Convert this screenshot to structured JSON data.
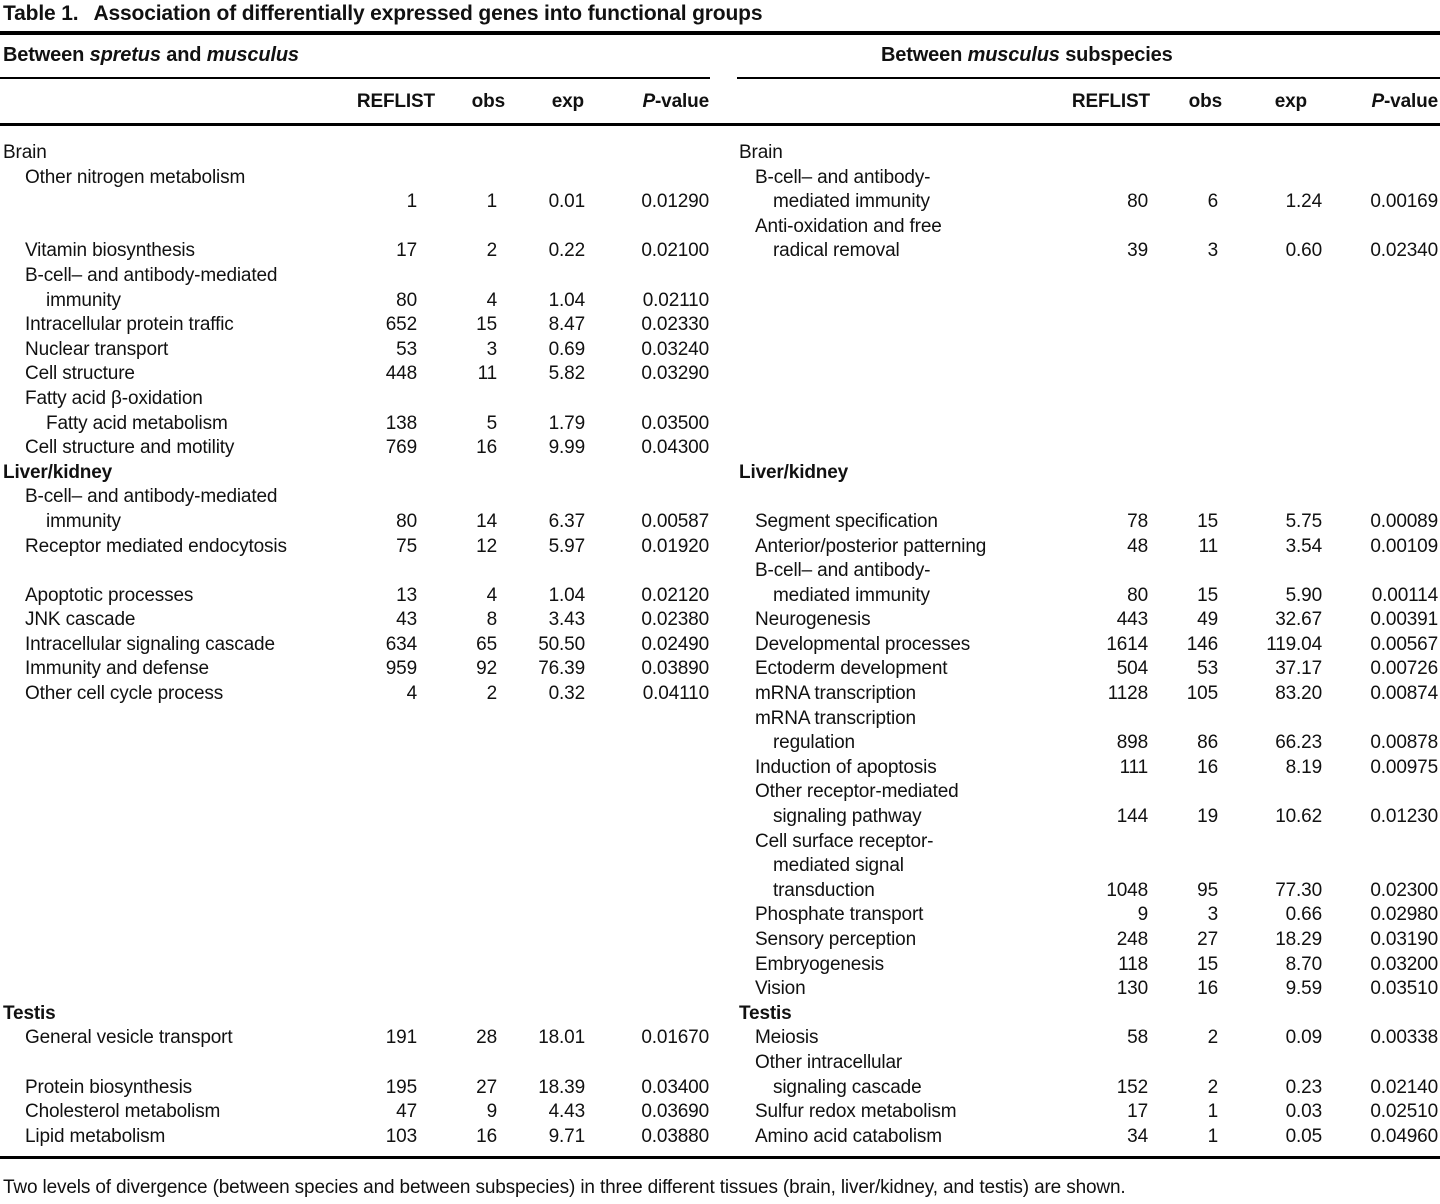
{
  "title": {
    "label": "Table 1.",
    "text": "Association of differentially expressed genes into functional groups"
  },
  "group_headers": {
    "left_segments": [
      {
        "t": "Between ",
        "i": false
      },
      {
        "t": "spretus",
        "i": true
      },
      {
        "t": " and ",
        "i": false
      },
      {
        "t": "musculus",
        "i": true
      }
    ],
    "right_segments": [
      {
        "t": "Between ",
        "i": false
      },
      {
        "t": "musculus",
        "i": true
      },
      {
        "t": " subspecies",
        "i": false
      }
    ]
  },
  "columns": {
    "reflist": "REFLIST",
    "obs": "obs",
    "exp": "exp",
    "p_segments": [
      {
        "t": "P",
        "i": true
      },
      {
        "t": "-value",
        "i": false
      }
    ]
  },
  "rows": [
    {
      "l": {
        "n": "Brain",
        "i": 0
      },
      "r": {
        "n": "Brain",
        "i": 0
      }
    },
    {
      "l": {
        "n": "Other nitrogen metabolism",
        "i": 1
      },
      "r": {
        "n": "B-cell– and antibody-",
        "i": 1
      }
    },
    {
      "l": {
        "n": "",
        "i": 0,
        "v": [
          "1",
          "1",
          "0.01",
          "0.01290"
        ]
      },
      "r": {
        "n": "mediated immunity",
        "i": 2,
        "v": [
          "80",
          "6",
          "1.24",
          "0.00169"
        ]
      }
    },
    {
      "l": null,
      "r": {
        "n": "Anti-oxidation and free",
        "i": 1
      }
    },
    {
      "l": {
        "n": "Vitamin biosynthesis",
        "i": 1,
        "v": [
          "17",
          "2",
          "0.22",
          "0.02100"
        ]
      },
      "r": {
        "n": "radical removal",
        "i": 2,
        "v": [
          "39",
          "3",
          "0.60",
          "0.02340"
        ]
      }
    },
    {
      "l": {
        "n": "B-cell– and antibody-mediated",
        "i": 1
      },
      "r": null
    },
    {
      "l": {
        "n": "immunity",
        "i": 2,
        "v": [
          "80",
          "4",
          "1.04",
          "0.02110"
        ]
      },
      "r": null
    },
    {
      "l": {
        "n": "Intracellular protein traffic",
        "i": 1,
        "v": [
          "652",
          "15",
          "8.47",
          "0.02330"
        ]
      },
      "r": null
    },
    {
      "l": {
        "n": "Nuclear transport",
        "i": 1,
        "v": [
          "53",
          "3",
          "0.69",
          "0.03240"
        ]
      },
      "r": null
    },
    {
      "l": {
        "n": "Cell structure",
        "i": 1,
        "v": [
          "448",
          "11",
          "5.82",
          "0.03290"
        ]
      },
      "r": null
    },
    {
      "l": {
        "n": "Fatty acid β-oxidation",
        "i": 1
      },
      "r": null
    },
    {
      "l": {
        "n": "Fatty acid metabolism",
        "i": 2,
        "v": [
          "138",
          "5",
          "1.79",
          "0.03500"
        ]
      },
      "r": null
    },
    {
      "l": {
        "n": "Cell structure and motility",
        "i": 1,
        "v": [
          "769",
          "16",
          "9.99",
          "0.04300"
        ]
      },
      "r": null
    },
    {
      "l": {
        "n": "Liver/kidney",
        "i": 0,
        "b": true
      },
      "r": {
        "n": "Liver/kidney",
        "i": 0,
        "b": true
      }
    },
    {
      "l": {
        "n": "B-cell– and antibody-mediated",
        "i": 1
      },
      "r": null
    },
    {
      "l": {
        "n": "immunity",
        "i": 2,
        "v": [
          "80",
          "14",
          "6.37",
          "0.00587"
        ]
      },
      "r": {
        "n": "Segment specification",
        "i": 1,
        "v": [
          "78",
          "15",
          "5.75",
          "0.00089"
        ]
      }
    },
    {
      "l": {
        "n": "Receptor mediated endocytosis",
        "i": 1,
        "v": [
          "75",
          "12",
          "5.97",
          "0.01920"
        ]
      },
      "r": {
        "n": "Anterior/posterior patterning",
        "i": 1,
        "v": [
          "48",
          "11",
          "3.54",
          "0.00109"
        ]
      }
    },
    {
      "l": null,
      "r": {
        "n": "B-cell– and antibody-",
        "i": 1
      }
    },
    {
      "l": {
        "n": "Apoptotic processes",
        "i": 1,
        "v": [
          "13",
          "4",
          "1.04",
          "0.02120"
        ]
      },
      "r": {
        "n": "mediated immunity",
        "i": 2,
        "v": [
          "80",
          "15",
          "5.90",
          "0.00114"
        ]
      }
    },
    {
      "l": {
        "n": "JNK cascade",
        "i": 1,
        "v": [
          "43",
          "8",
          "3.43",
          "0.02380"
        ]
      },
      "r": {
        "n": "Neurogenesis",
        "i": 1,
        "v": [
          "443",
          "49",
          "32.67",
          "0.00391"
        ]
      }
    },
    {
      "l": {
        "n": "Intracellular signaling cascade",
        "i": 1,
        "v": [
          "634",
          "65",
          "50.50",
          "0.02490"
        ]
      },
      "r": {
        "n": "Developmental processes",
        "i": 1,
        "v": [
          "1614",
          "146",
          "119.04",
          "0.00567"
        ]
      }
    },
    {
      "l": {
        "n": "Immunity and defense",
        "i": 1,
        "v": [
          "959",
          "92",
          "76.39",
          "0.03890"
        ]
      },
      "r": {
        "n": "Ectoderm development",
        "i": 1,
        "v": [
          "504",
          "53",
          "37.17",
          "0.00726"
        ]
      }
    },
    {
      "l": {
        "n": "Other cell cycle process",
        "i": 1,
        "v": [
          "4",
          "2",
          "0.32",
          "0.04110"
        ]
      },
      "r": {
        "n": "mRNA transcription",
        "i": 1,
        "v": [
          "1128",
          "105",
          "83.20",
          "0.00874"
        ]
      }
    },
    {
      "l": null,
      "r": {
        "n": "mRNA transcription",
        "i": 1
      }
    },
    {
      "l": null,
      "r": {
        "n": "regulation",
        "i": 2,
        "v": [
          "898",
          "86",
          "66.23",
          "0.00878"
        ]
      }
    },
    {
      "l": null,
      "r": {
        "n": "Induction of apoptosis",
        "i": 1,
        "v": [
          "111",
          "16",
          "8.19",
          "0.00975"
        ]
      }
    },
    {
      "l": null,
      "r": {
        "n": "Other receptor-mediated",
        "i": 1
      }
    },
    {
      "l": null,
      "r": {
        "n": "signaling pathway",
        "i": 2,
        "v": [
          "144",
          "19",
          "10.62",
          "0.01230"
        ]
      }
    },
    {
      "l": null,
      "r": {
        "n": "Cell surface receptor-",
        "i": 1
      }
    },
    {
      "l": null,
      "r": {
        "n": "mediated signal",
        "i": 2
      }
    },
    {
      "l": null,
      "r": {
        "n": "transduction",
        "i": 2,
        "v": [
          "1048",
          "95",
          "77.30",
          "0.02300"
        ]
      }
    },
    {
      "l": null,
      "r": {
        "n": "Phosphate transport",
        "i": 1,
        "v": [
          "9",
          "3",
          "0.66",
          "0.02980"
        ]
      }
    },
    {
      "l": null,
      "r": {
        "n": "Sensory perception",
        "i": 1,
        "v": [
          "248",
          "27",
          "18.29",
          "0.03190"
        ]
      }
    },
    {
      "l": null,
      "r": {
        "n": "Embryogenesis",
        "i": 1,
        "v": [
          "118",
          "15",
          "8.70",
          "0.03200"
        ]
      }
    },
    {
      "l": null,
      "r": {
        "n": "Vision",
        "i": 1,
        "v": [
          "130",
          "16",
          "9.59",
          "0.03510"
        ]
      }
    },
    {
      "l": {
        "n": "Testis",
        "i": 0,
        "b": true
      },
      "r": {
        "n": "Testis",
        "i": 0,
        "b": true
      }
    },
    {
      "l": {
        "n": "General vesicle transport",
        "i": 1,
        "v": [
          "191",
          "28",
          "18.01",
          "0.01670"
        ]
      },
      "r": {
        "n": "Meiosis",
        "i": 1,
        "v": [
          "58",
          "2",
          "0.09",
          "0.00338"
        ]
      }
    },
    {
      "l": null,
      "r": {
        "n": "Other intracellular",
        "i": 1
      }
    },
    {
      "l": {
        "n": "Protein biosynthesis",
        "i": 1,
        "v": [
          "195",
          "27",
          "18.39",
          "0.03400"
        ]
      },
      "r": {
        "n": "signaling cascade",
        "i": 2,
        "v": [
          "152",
          "2",
          "0.23",
          "0.02140"
        ]
      }
    },
    {
      "l": {
        "n": "Cholesterol metabolism",
        "i": 1,
        "v": [
          "47",
          "9",
          "4.43",
          "0.03690"
        ]
      },
      "r": {
        "n": "Sulfur redox metabolism",
        "i": 1,
        "v": [
          "17",
          "1",
          "0.03",
          "0.02510"
        ]
      }
    },
    {
      "l": {
        "n": "Lipid metabolism",
        "i": 1,
        "v": [
          "103",
          "16",
          "9.71",
          "0.03880"
        ]
      },
      "r": {
        "n": "Amino acid catabolism",
        "i": 1,
        "v": [
          "34",
          "1",
          "0.05",
          "0.04960"
        ]
      }
    }
  ],
  "footnote": "Two levels of divergence (between species and between subspecies) in three different tissues (brain, liver/kidney, and testis) are shown."
}
